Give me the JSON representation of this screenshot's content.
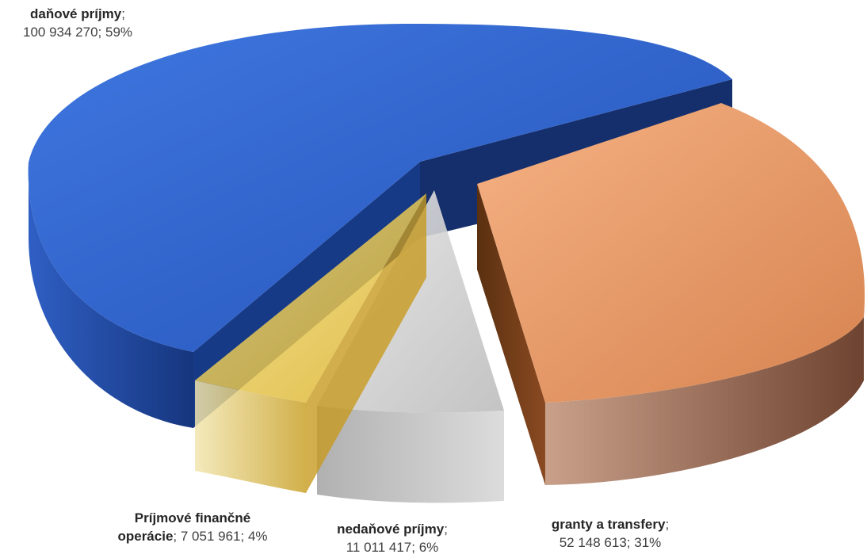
{
  "chart_data": {
    "type": "pie",
    "style": "3d-exploded",
    "title": "",
    "slices": [
      {
        "category": "daňové príjmy",
        "value": 100934270,
        "value_label": "100 934 270",
        "percent_label": "59%",
        "color": "#2e62cf"
      },
      {
        "category": "granty a transfery",
        "value": 52148613,
        "value_label": "52 148 613",
        "percent_label": "31%",
        "color": "#f0a06e"
      },
      {
        "category": "nedaňové príjmy",
        "value": 11011417,
        "value_label": "11 011 417",
        "percent_label": "6%",
        "color": "#c8c8c8"
      },
      {
        "category": "Príjmové finančné operácie",
        "category_line1": "Príjmové finančné",
        "category_line2": "operácie",
        "value": 7051961,
        "value_label": "7 051 961",
        "percent_label": "4%",
        "color": "#e9c43c"
      }
    ]
  }
}
